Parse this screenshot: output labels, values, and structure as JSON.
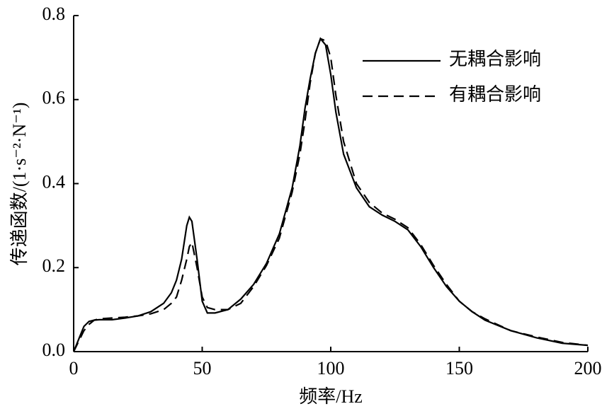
{
  "chart_data": {
    "type": "line",
    "x_label": "频率/Hz",
    "y_label": "传递函数/(1·s⁻²·N⁻¹)",
    "x": [
      0,
      2,
      4,
      6,
      8,
      10,
      15,
      20,
      25,
      30,
      35,
      38,
      40,
      42,
      44,
      45,
      46,
      48,
      50,
      52,
      55,
      60,
      65,
      70,
      75,
      80,
      85,
      88,
      90,
      92,
      94,
      96,
      98,
      100,
      102,
      105,
      110,
      115,
      120,
      125,
      130,
      135,
      140,
      145,
      150,
      155,
      160,
      170,
      180,
      190,
      200
    ],
    "series": [
      {
        "name": "无耦合影响",
        "color": "#000000",
        "dash": "none",
        "values": [
          0,
          0.03,
          0.06,
          0.072,
          0.075,
          0.076,
          0.076,
          0.08,
          0.085,
          0.095,
          0.115,
          0.14,
          0.17,
          0.22,
          0.3,
          0.32,
          0.31,
          0.22,
          0.12,
          0.092,
          0.092,
          0.1,
          0.125,
          0.16,
          0.21,
          0.28,
          0.39,
          0.49,
          0.58,
          0.65,
          0.71,
          0.745,
          0.73,
          0.66,
          0.57,
          0.47,
          0.39,
          0.345,
          0.325,
          0.31,
          0.29,
          0.25,
          0.2,
          0.155,
          0.12,
          0.095,
          0.075,
          0.05,
          0.033,
          0.02,
          0.015
        ]
      },
      {
        "name": "有耦合影响",
        "color": "#000000",
        "dash": "14 8",
        "values": [
          0,
          0.025,
          0.05,
          0.065,
          0.075,
          0.078,
          0.08,
          0.082,
          0.085,
          0.09,
          0.1,
          0.115,
          0.13,
          0.17,
          0.22,
          0.25,
          0.26,
          0.2,
          0.13,
          0.105,
          0.1,
          0.1,
          0.115,
          0.155,
          0.205,
          0.27,
          0.38,
          0.47,
          0.55,
          0.64,
          0.71,
          0.745,
          0.74,
          0.7,
          0.61,
          0.5,
          0.4,
          0.355,
          0.33,
          0.315,
          0.295,
          0.255,
          0.205,
          0.16,
          0.12,
          0.095,
          0.078,
          0.05,
          0.035,
          0.022,
          0.015
        ]
      }
    ],
    "xlim": [
      0,
      200
    ],
    "xticks": [
      0,
      50,
      100,
      150,
      200
    ],
    "ylim": [
      0,
      0.8
    ],
    "yticks": [
      {
        "value": 0,
        "label": "0.0"
      },
      0.2,
      0.4,
      0.6,
      0.8
    ],
    "legend": "upper right"
  }
}
